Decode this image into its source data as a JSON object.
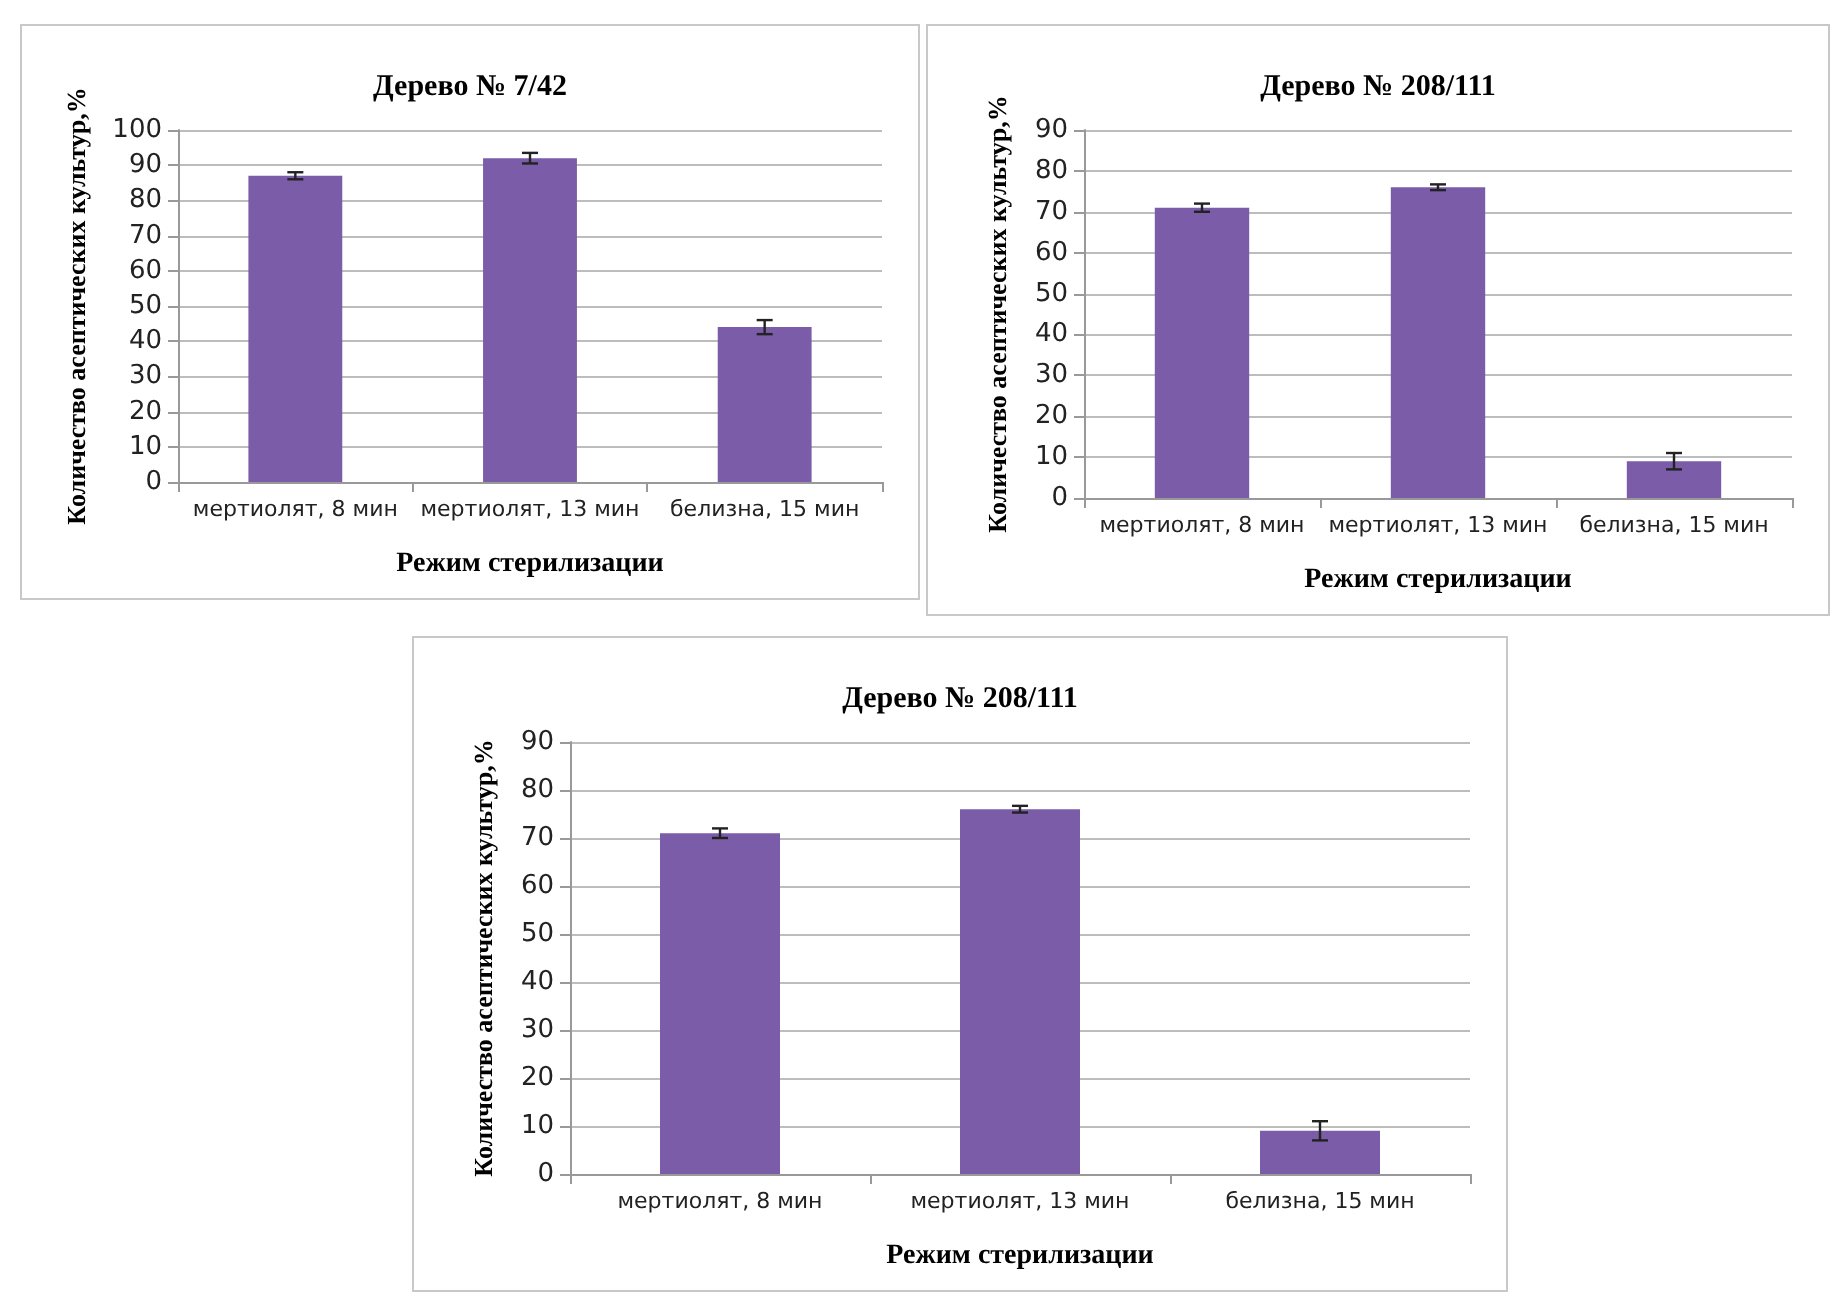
{
  "chart_data": [
    {
      "type": "bar",
      "title": "Дерево № 7/42",
      "xlabel": "Режим стерилизации",
      "ylabel": "Количество асептических культур,%",
      "categories": [
        "мертиолят, 8 мин",
        "мертиолят, 13 мин",
        "белизна, 15 мин"
      ],
      "values": [
        87,
        92,
        44
      ],
      "errors": [
        1,
        1.5,
        2
      ],
      "color": "#7a5ca8",
      "ylim": [
        0,
        100
      ],
      "yticks": [
        0,
        10,
        20,
        30,
        40,
        50,
        60,
        70,
        80,
        90,
        100
      ],
      "grid": "y"
    },
    {
      "type": "bar",
      "title": "Дерево № 208/111",
      "xlabel": "Режим стерилизации",
      "ylabel": "Количество асептических культур,%",
      "categories": [
        "мертиолят, 8 мин",
        "мертиолят, 13 мин",
        "белизна, 15 мин"
      ],
      "values": [
        71,
        76,
        9
      ],
      "errors": [
        1,
        0.7,
        2
      ],
      "color": "#7a5ca8",
      "ylim": [
        0,
        90
      ],
      "yticks": [
        0,
        10,
        20,
        30,
        40,
        50,
        60,
        70,
        80,
        90
      ],
      "grid": "y"
    },
    {
      "type": "bar",
      "title": "Дерево № 208/111",
      "xlabel": "Режим стерилизации",
      "ylabel": "Количество асептических культур,%",
      "categories": [
        "мертиолят, 8 мин",
        "мертиолят, 13 мин",
        "белизна, 15 мин"
      ],
      "values": [
        71,
        76,
        9
      ],
      "errors": [
        1,
        0.7,
        2
      ],
      "color": "#7a5ca8",
      "ylim": [
        0,
        90
      ],
      "yticks": [
        0,
        10,
        20,
        30,
        40,
        50,
        60,
        70,
        80,
        90
      ],
      "grid": "y"
    }
  ]
}
